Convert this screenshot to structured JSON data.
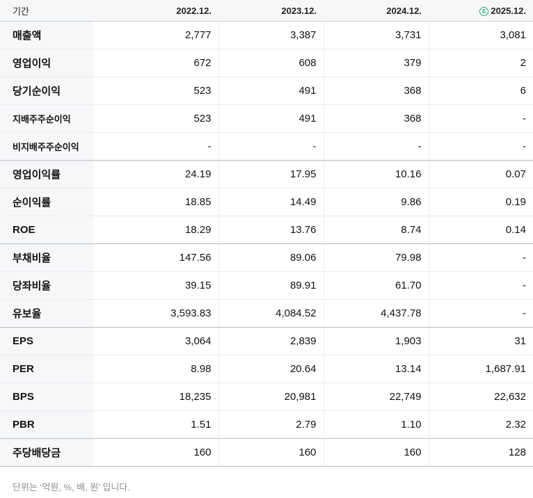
{
  "table": {
    "header": {
      "label": "기간",
      "periods": [
        "2022.12.",
        "2023.12.",
        "2024.12.",
        "2025.12."
      ],
      "estimate_badge": "E"
    },
    "rows": [
      {
        "label": "매출액",
        "values": [
          "2,777",
          "3,387",
          "3,731",
          "3,081"
        ]
      },
      {
        "label": "영업이익",
        "values": [
          "672",
          "608",
          "379",
          "2"
        ]
      },
      {
        "label": "당기순이익",
        "values": [
          "523",
          "491",
          "368",
          "6"
        ]
      },
      {
        "label": "지배주주순이익",
        "values": [
          "523",
          "491",
          "368",
          "-"
        ]
      },
      {
        "label": "비지배주주순이익",
        "values": [
          "-",
          "-",
          "-",
          "-"
        ]
      },
      {
        "label": "영업이익률",
        "values": [
          "24.19",
          "17.95",
          "10.16",
          "0.07"
        ]
      },
      {
        "label": "순이익률",
        "values": [
          "18.85",
          "14.49",
          "9.86",
          "0.19"
        ]
      },
      {
        "label": "ROE",
        "values": [
          "18.29",
          "13.76",
          "8.74",
          "0.14"
        ]
      },
      {
        "label": "부채비율",
        "values": [
          "147.56",
          "89.06",
          "79.98",
          "-"
        ]
      },
      {
        "label": "당좌비율",
        "values": [
          "39.15",
          "89.91",
          "61.70",
          "-"
        ]
      },
      {
        "label": "유보율",
        "values": [
          "3,593.83",
          "4,084.52",
          "4,437.78",
          "-"
        ]
      },
      {
        "label": "EPS",
        "values": [
          "3,064",
          "2,839",
          "1,903",
          "31"
        ]
      },
      {
        "label": "PER",
        "values": [
          "8.98",
          "20.64",
          "13.14",
          "1,687.91"
        ]
      },
      {
        "label": "BPS",
        "values": [
          "18,235",
          "20,981",
          "22,749",
          "22,632"
        ]
      },
      {
        "label": "PBR",
        "values": [
          "1.51",
          "2.79",
          "1.10",
          "2.32"
        ]
      },
      {
        "label": "주당배당금",
        "values": [
          "160",
          "160",
          "160",
          "128"
        ]
      }
    ]
  },
  "footnote": "단위는 ‘억원, %, 배, 원’ 입니다."
}
